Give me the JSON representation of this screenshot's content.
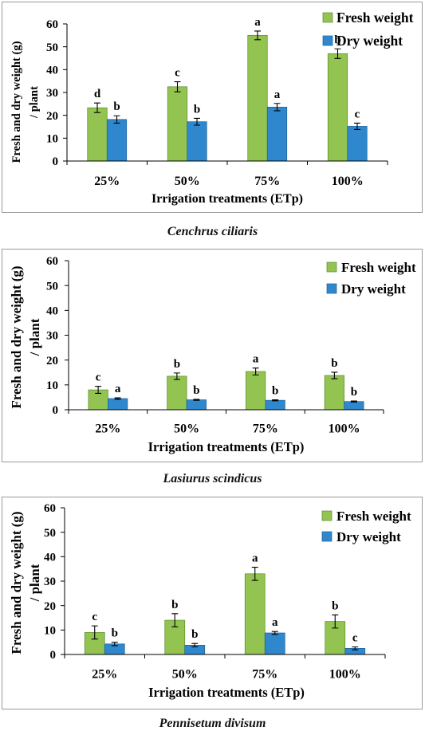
{
  "chart_data": [
    {
      "type": "bar",
      "caption": "Cenchrus ciliaris",
      "categories": [
        "25%",
        "50%",
        "75%",
        "100%"
      ],
      "xlabel": "Irrigation treatments (ETp)",
      "ylabel": [
        "Fresh and dry weight (g)",
        "/ plant"
      ],
      "ylim": [
        0,
        60
      ],
      "yticks": [
        0,
        10,
        20,
        30,
        40,
        50,
        60
      ],
      "grid": false,
      "legend": "top-right",
      "series": [
        {
          "name": "Fresh weight",
          "color": "#93c452",
          "values": [
            23.3,
            32.5,
            55.0,
            47.0
          ],
          "errors": [
            2.1,
            2.2,
            1.9,
            2.1
          ],
          "letters": [
            "d",
            "c",
            "a",
            "b"
          ]
        },
        {
          "name": "Dry weight",
          "color": "#2f88cd",
          "values": [
            18.2,
            17.2,
            23.6,
            15.2
          ],
          "errors": [
            1.6,
            1.5,
            1.6,
            1.4
          ],
          "letters": [
            "b",
            "b",
            "a",
            "c"
          ]
        }
      ]
    },
    {
      "type": "bar",
      "caption": "Lasiurus scindicus",
      "categories": [
        "25%",
        "50%",
        "75%",
        "100%"
      ],
      "xlabel": "Irrigation treatments (ETp)",
      "ylabel": [
        "Fresh and dry weight (g)",
        "/ plant"
      ],
      "ylim": [
        0,
        60
      ],
      "yticks": [
        0,
        10,
        20,
        30,
        40,
        50,
        60
      ],
      "grid": false,
      "legend": "top-right",
      "series": [
        {
          "name": "Fresh weight",
          "color": "#93c452",
          "values": [
            8.0,
            13.5,
            15.4,
            13.8
          ],
          "errors": [
            1.4,
            1.3,
            1.4,
            1.3
          ],
          "letters": [
            "c",
            "b",
            "a",
            "b"
          ]
        },
        {
          "name": "Dry weight",
          "color": "#2f88cd",
          "values": [
            4.5,
            4.0,
            3.8,
            3.3
          ],
          "errors": [
            0.3,
            0.2,
            0.2,
            0.2
          ],
          "letters": [
            "a",
            "b",
            "b",
            "b"
          ]
        }
      ]
    },
    {
      "type": "bar",
      "caption": "Pennisetum divisum",
      "categories": [
        "25%",
        "50%",
        "75%",
        "100%"
      ],
      "xlabel": "Irrigation treatments (ETp)",
      "ylabel": [
        "Fresh and dry weight (g)",
        "/ plant"
      ],
      "ylim": [
        0,
        60
      ],
      "yticks": [
        0,
        10,
        20,
        30,
        40,
        50,
        60
      ],
      "grid": false,
      "legend": "top-right",
      "series": [
        {
          "name": "Fresh weight",
          "color": "#93c452",
          "values": [
            9.0,
            14.0,
            33.0,
            13.5
          ],
          "errors": [
            2.7,
            2.7,
            2.7,
            2.7
          ],
          "letters": [
            "c",
            "b",
            "a",
            "b"
          ]
        },
        {
          "name": "Dry weight",
          "color": "#2f88cd",
          "values": [
            4.3,
            3.8,
            8.8,
            2.5
          ],
          "errors": [
            0.7,
            0.7,
            0.6,
            0.6
          ],
          "letters": [
            "b",
            "b",
            "a",
            "c"
          ]
        }
      ]
    }
  ]
}
